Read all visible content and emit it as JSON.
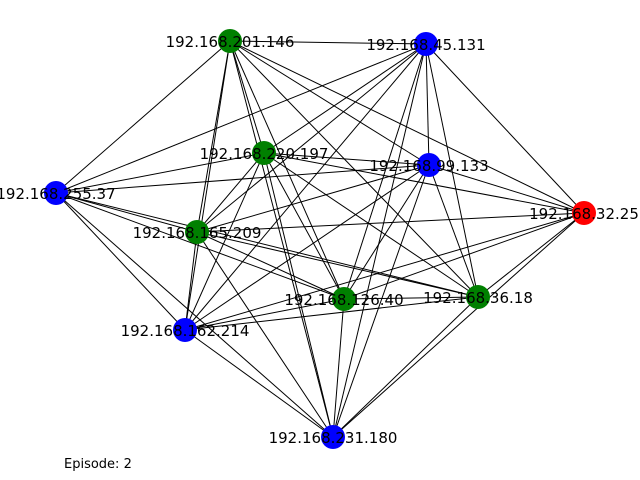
{
  "graph": {
    "nodes": [
      {
        "id": "n201",
        "label": "192.168.201.146",
        "color": "#008000"
      },
      {
        "id": "n45",
        "label": "192.168.45.131",
        "color": "#0000ff"
      },
      {
        "id": "n220",
        "label": "192.168.220.197",
        "color": "#008000"
      },
      {
        "id": "n99",
        "label": "192.168.99.133",
        "color": "#0000ff"
      },
      {
        "id": "n255",
        "label": "192.168.255.37",
        "color": "#0000ff"
      },
      {
        "id": "n32",
        "label": "192.168.32.25",
        "color": "#ff0000"
      },
      {
        "id": "n165",
        "label": "192.168.165.209",
        "color": "#008000"
      },
      {
        "id": "n126",
        "label": "192.168.126.40",
        "color": "#008000"
      },
      {
        "id": "n36",
        "label": "192.168.36.18",
        "color": "#008000"
      },
      {
        "id": "n162",
        "label": "192.168.162.214",
        "color": "#0000ff"
      },
      {
        "id": "n231",
        "label": "192.168.231.180",
        "color": "#0000ff"
      }
    ],
    "edges": [
      [
        "n201",
        "n45"
      ],
      [
        "n201",
        "n255"
      ],
      [
        "n201",
        "n220"
      ],
      [
        "n201",
        "n99"
      ],
      [
        "n201",
        "n32"
      ],
      [
        "n201",
        "n165"
      ],
      [
        "n201",
        "n126"
      ],
      [
        "n201",
        "n36"
      ],
      [
        "n201",
        "n162"
      ],
      [
        "n201",
        "n231"
      ],
      [
        "n45",
        "n255"
      ],
      [
        "n45",
        "n220"
      ],
      [
        "n45",
        "n99"
      ],
      [
        "n45",
        "n32"
      ],
      [
        "n45",
        "n165"
      ],
      [
        "n45",
        "n126"
      ],
      [
        "n45",
        "n36"
      ],
      [
        "n45",
        "n162"
      ],
      [
        "n45",
        "n231"
      ],
      [
        "n220",
        "n255"
      ],
      [
        "n220",
        "n99"
      ],
      [
        "n220",
        "n32"
      ],
      [
        "n220",
        "n165"
      ],
      [
        "n220",
        "n126"
      ],
      [
        "n220",
        "n36"
      ],
      [
        "n220",
        "n162"
      ],
      [
        "n220",
        "n231"
      ],
      [
        "n99",
        "n255"
      ],
      [
        "n99",
        "n32"
      ],
      [
        "n99",
        "n165"
      ],
      [
        "n99",
        "n126"
      ],
      [
        "n99",
        "n36"
      ],
      [
        "n99",
        "n162"
      ],
      [
        "n99",
        "n231"
      ],
      [
        "n255",
        "n165"
      ],
      [
        "n255",
        "n126"
      ],
      [
        "n255",
        "n36"
      ],
      [
        "n255",
        "n162"
      ],
      [
        "n255",
        "n231"
      ],
      [
        "n32",
        "n165"
      ],
      [
        "n32",
        "n126"
      ],
      [
        "n32",
        "n36"
      ],
      [
        "n32",
        "n162"
      ],
      [
        "n32",
        "n231"
      ],
      [
        "n165",
        "n126"
      ],
      [
        "n165",
        "n36"
      ],
      [
        "n165",
        "n162"
      ],
      [
        "n165",
        "n231"
      ],
      [
        "n126",
        "n36"
      ],
      [
        "n126",
        "n162"
      ],
      [
        "n126",
        "n231"
      ],
      [
        "n36",
        "n162"
      ],
      [
        "n36",
        "n231"
      ],
      [
        "n162",
        "n231"
      ]
    ]
  },
  "footer": {
    "episode_label": "Episode: 2"
  }
}
